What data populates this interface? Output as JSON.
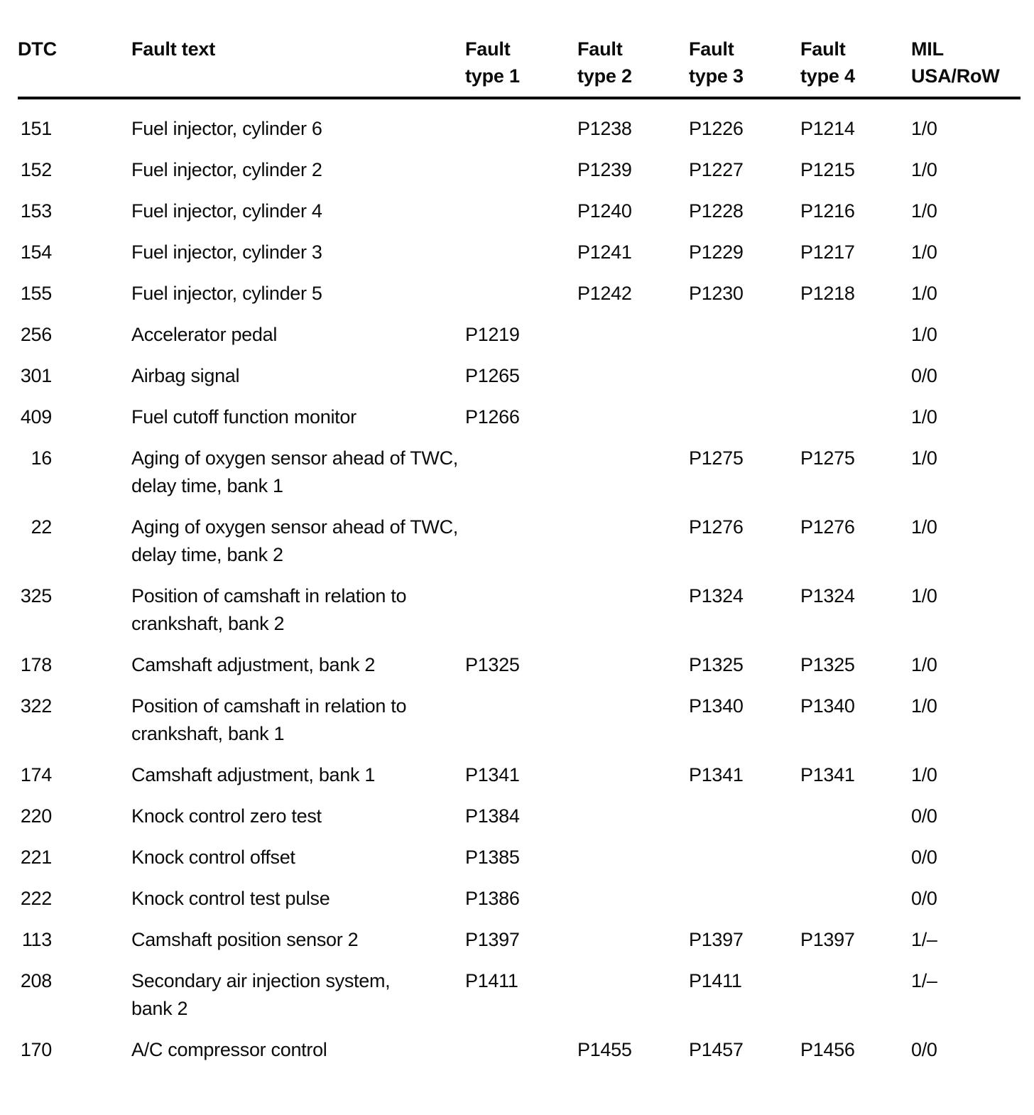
{
  "table": {
    "columns": [
      {
        "line1": "DTC",
        "line2": ""
      },
      {
        "line1": "Fault text",
        "line2": ""
      },
      {
        "line1": "Fault",
        "line2": "type 1"
      },
      {
        "line1": "Fault",
        "line2": "type 2"
      },
      {
        "line1": "Fault",
        "line2": "type 3"
      },
      {
        "line1": "Fault",
        "line2": "type 4"
      },
      {
        "line1": "MIL",
        "line2": "USA/RoW"
      }
    ],
    "rows": [
      {
        "dtc": "151",
        "fault_text": "Fuel injector, cylinder 6",
        "fault_type_2": "P1238",
        "fault_type_3": "P1226",
        "fault_type_4": "P1214",
        "mil": "1/0"
      },
      {
        "dtc": "152",
        "fault_text": "Fuel injector, cylinder 2",
        "fault_type_2": "P1239",
        "fault_type_3": "P1227",
        "fault_type_4": "P1215",
        "mil": "1/0"
      },
      {
        "dtc": "153",
        "fault_text": "Fuel injector, cylinder 4",
        "fault_type_2": "P1240",
        "fault_type_3": "P1228",
        "fault_type_4": "P1216",
        "mil": "1/0"
      },
      {
        "dtc": "154",
        "fault_text": "Fuel injector, cylinder 3",
        "fault_type_2": "P1241",
        "fault_type_3": "P1229",
        "fault_type_4": "P1217",
        "mil": "1/0"
      },
      {
        "dtc": "155",
        "fault_text": "Fuel injector, cylinder 5",
        "fault_type_2": "P1242",
        "fault_type_3": "P1230",
        "fault_type_4": "P1218",
        "mil": "1/0"
      },
      {
        "dtc": "256",
        "fault_text": "Accelerator pedal",
        "fault_type_1": "P1219",
        "mil": "1/0"
      },
      {
        "dtc": "301",
        "fault_text": "Airbag signal",
        "fault_type_1": "P1265",
        "mil": "0/0"
      },
      {
        "dtc": "409",
        "fault_text": "Fuel cutoff function monitor",
        "fault_type_1": "P1266",
        "mil": "1/0"
      },
      {
        "dtc": "16",
        "fault_text": "Aging of oxygen sensor ahead of TWC,\ndelay time, bank 1",
        "fault_type_3": "P1275",
        "fault_type_4": "P1275",
        "mil": "1/0"
      },
      {
        "dtc": "22",
        "fault_text": "Aging of oxygen sensor ahead of TWC,\ndelay time, bank 2",
        "fault_type_3": "P1276",
        "fault_type_4": "P1276",
        "mil": "1/0"
      },
      {
        "dtc": "325",
        "fault_text": "Position of camshaft in relation to\ncrankshaft, bank 2",
        "fault_type_3": "P1324",
        "fault_type_4": "P1324",
        "mil": "1/0"
      },
      {
        "dtc": "178",
        "fault_text": "Camshaft adjustment, bank 2",
        "fault_type_1": "P1325",
        "fault_type_3": "P1325",
        "fault_type_4": "P1325",
        "mil": "1/0"
      },
      {
        "dtc": "322",
        "fault_text": "Position of camshaft in relation to\ncrankshaft, bank 1",
        "fault_type_3": "P1340",
        "fault_type_4": "P1340",
        "mil": "1/0"
      },
      {
        "dtc": "174",
        "fault_text": "Camshaft adjustment, bank 1",
        "fault_type_1": "P1341",
        "fault_type_3": "P1341",
        "fault_type_4": "P1341",
        "mil": "1/0"
      },
      {
        "dtc": "220",
        "fault_text": "Knock control zero test",
        "fault_type_1": "P1384",
        "mil": "0/0"
      },
      {
        "dtc": "221",
        "fault_text": "Knock control offset",
        "fault_type_1": "P1385",
        "mil": "0/0"
      },
      {
        "dtc": "222",
        "fault_text": "Knock control test pulse",
        "fault_type_1": "P1386",
        "mil": "0/0"
      },
      {
        "dtc": "113",
        "fault_text": "Camshaft position sensor 2",
        "fault_type_1": "P1397",
        "fault_type_3": "P1397",
        "fault_type_4": "P1397",
        "mil": "1/–"
      },
      {
        "dtc": "208",
        "fault_text": "Secondary air injection system,\nbank 2",
        "fault_type_1": "P1411",
        "fault_type_3": "P1411",
        "mil": "1/–"
      },
      {
        "dtc": "170",
        "fault_text": "A/C compressor control",
        "fault_type_2": "P1455",
        "fault_type_3": "P1457",
        "fault_type_4": "P1456",
        "mil": "0/0"
      }
    ]
  }
}
